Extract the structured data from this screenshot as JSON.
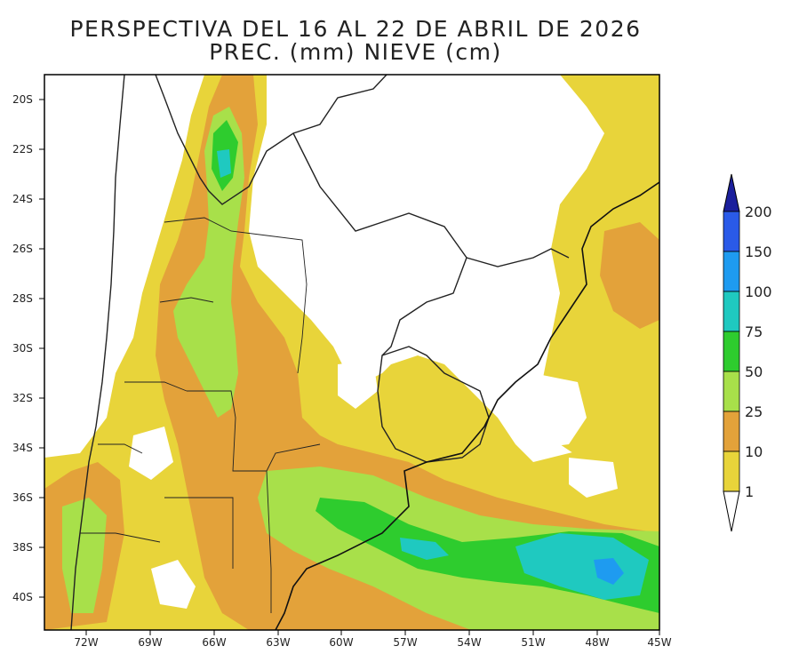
{
  "title": {
    "line1": "PERSPECTIVA DEL 16 AL 22 DE ABRIL DE 2026",
    "line2": "PREC. (mm) NIEVE (cm)"
  },
  "map": {
    "lat_labels": [
      "20S",
      "22S",
      "24S",
      "26S",
      "28S",
      "30S",
      "32S",
      "34S",
      "36S",
      "38S",
      "40S"
    ],
    "lon_labels": [
      "72W",
      "69W",
      "66W",
      "63W",
      "60W",
      "57W",
      "54W",
      "51W",
      "48W",
      "45W"
    ]
  },
  "colorbar": {
    "levels": [
      "1",
      "10",
      "25",
      "50",
      "75",
      "100",
      "150",
      "200"
    ],
    "colors": {
      "1-10": "#e8d43a",
      "10-25": "#e3a23a",
      "25-50": "#a8e04a",
      "50-75": "#2ecc2e",
      "75-100": "#1fc9c0",
      "100-150": "#1e9bf0",
      "150-200": "#2a5ae8",
      "200+": "#1b1f9c"
    }
  },
  "colors": {
    "frame": "#000000",
    "borders": "#222222"
  }
}
